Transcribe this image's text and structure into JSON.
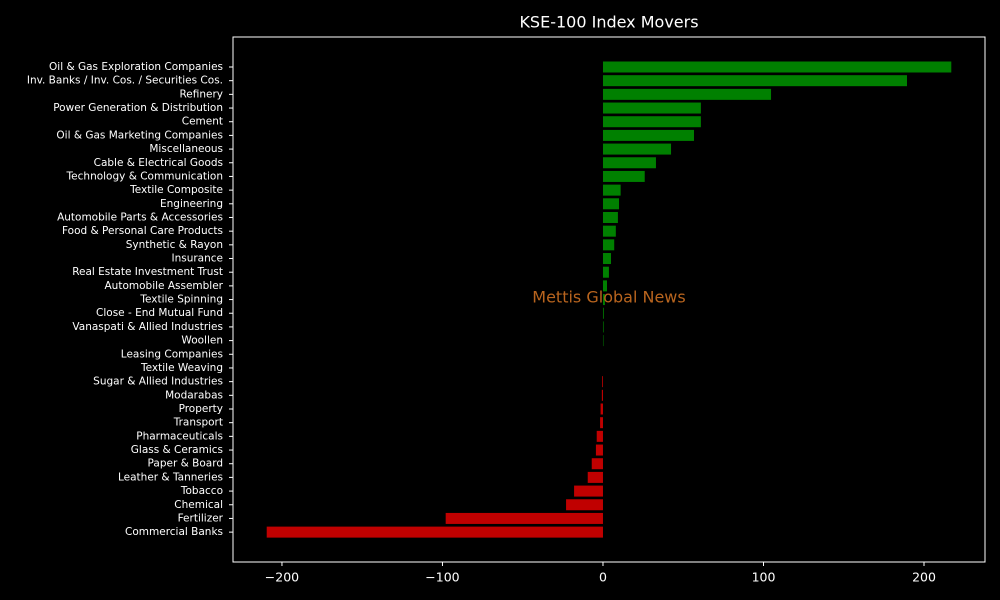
{
  "chart_data": {
    "type": "barh",
    "title": "KSE-100 Index Movers",
    "categories": [
      "Oil & Gas Exploration Companies",
      "Inv. Banks / Inv. Cos. / Securities Cos.",
      "Refinery",
      "Power Generation & Distribution",
      "Cement",
      "Oil & Gas Marketing Companies",
      "Miscellaneous",
      "Cable & Electrical Goods",
      "Technology & Communication",
      "Textile Composite",
      "Engineering",
      "Automobile Parts & Accessories",
      "Food & Personal Care Products",
      "Synthetic & Rayon",
      "Insurance",
      "Real Estate Investment Trust",
      "Automobile Assembler",
      "Textile Spinning",
      "Close - End Mutual Fund",
      "Vanaspati & Allied Industries",
      "Woollen",
      "Leasing Companies",
      "Textile Weaving",
      "Sugar & Allied Industries",
      "Modarabas",
      "Property",
      "Transport",
      "Pharmaceuticals",
      "Glass & Ceramics",
      "Paper & Board",
      "Leather & Tanneries",
      "Tobacco",
      "Chemical",
      "Fertilizer",
      "Commercial Banks"
    ],
    "values": [
      217,
      189.4,
      104.7,
      61,
      61,
      56.7,
      42.4,
      33,
      26,
      11,
      10,
      9.3,
      8,
      7,
      5,
      3.7,
      2.5,
      1.2,
      0.5,
      0.4,
      0.3,
      0,
      0,
      -0.5,
      -0.7,
      -1.5,
      -1.8,
      -3.9,
      -4.4,
      -7,
      -9.5,
      -18,
      -23,
      -98,
      -209.5
    ],
    "positive_color": "#008000",
    "negative_color": "#c00000",
    "xlim": [
      -230.5,
      238
    ],
    "xticks": [
      {
        "value": -200,
        "label": "−200"
      },
      {
        "value": -100,
        "label": "−100"
      },
      0,
      100,
      200
    ],
    "annotation": "Mettis Global News",
    "annotation_color": "#b8641e"
  }
}
